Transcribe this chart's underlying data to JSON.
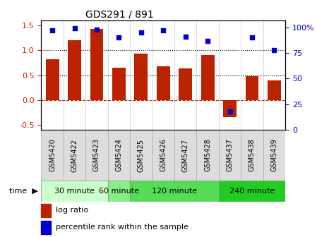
{
  "title": "GDS291 / 891",
  "samples": [
    "GSM5420",
    "GSM5422",
    "GSM5423",
    "GSM5424",
    "GSM5425",
    "GSM5426",
    "GSM5427",
    "GSM5428",
    "GSM5437",
    "GSM5438",
    "GSM5439"
  ],
  "log_ratio": [
    0.82,
    1.2,
    1.43,
    0.65,
    0.93,
    0.68,
    0.63,
    0.9,
    -0.35,
    0.48,
    0.4
  ],
  "percentile": [
    97,
    99,
    98,
    90,
    95,
    97,
    91,
    87,
    18,
    90,
    78
  ],
  "bar_color": "#bb2200",
  "dot_color": "#0000cc",
  "ylim_left": [
    -0.6,
    1.6
  ],
  "ylim_right": [
    0,
    106.67
  ],
  "yticks_left": [
    -0.5,
    0.0,
    0.5,
    1.0,
    1.5
  ],
  "yticks_right": [
    0,
    25,
    50,
    75,
    100
  ],
  "yticklabels_right": [
    "0",
    "25",
    "50",
    "75",
    "100%"
  ],
  "hlines": [
    0.5,
    1.0
  ],
  "groups": [
    {
      "label": "30 minute",
      "start": 0,
      "end": 3,
      "color": "#ccffcc"
    },
    {
      "label": "60 minute",
      "start": 3,
      "end": 4,
      "color": "#88ee88"
    },
    {
      "label": "120 minute",
      "start": 4,
      "end": 8,
      "color": "#55dd55"
    },
    {
      "label": "240 minute",
      "start": 8,
      "end": 11,
      "color": "#22cc22"
    }
  ],
  "xlabel_time": "time",
  "legend_bar_label": "log ratio",
  "legend_dot_label": "percentile rank within the sample",
  "bg_color": "#ffffff",
  "tick_label_color_left": "#cc2200",
  "tick_label_color_right": "#0000cc",
  "zero_line_color": "#cc2200",
  "bar_width": 0.6,
  "sample_box_color": "#dddddd",
  "sample_box_edge": "#aaaaaa"
}
